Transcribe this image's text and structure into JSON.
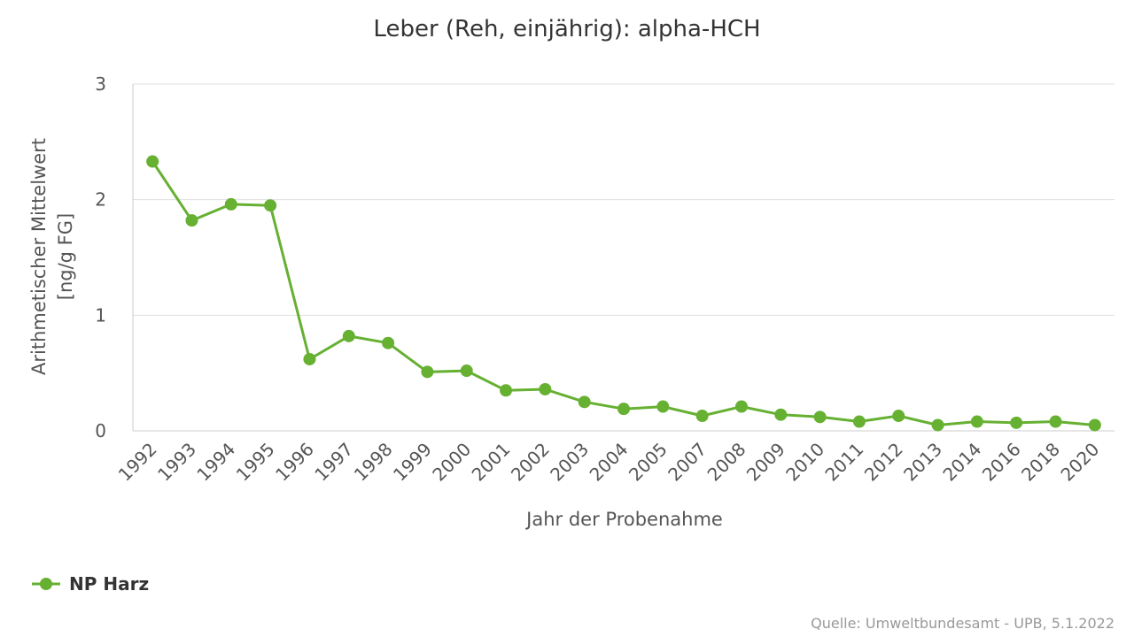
{
  "chart_data": {
    "type": "line",
    "title": "Leber (Reh, einjährig): alpha-HCH",
    "xlabel": "Jahr der Probenahme",
    "ylabel_line1": "Arithmetischer Mittelwert",
    "ylabel_line2": "[ng/g FG]",
    "ylim": [
      0,
      3
    ],
    "yticks": [
      "0",
      "1",
      "2",
      "3"
    ],
    "grid": true,
    "legend_position": "bottom-left",
    "categories": [
      "1992",
      "1993",
      "1994",
      "1995",
      "1996",
      "1997",
      "1998",
      "1999",
      "2000",
      "2001",
      "2002",
      "2003",
      "2004",
      "2005",
      "2007",
      "2008",
      "2009",
      "2010",
      "2011",
      "2012",
      "2013",
      "2014",
      "2016",
      "2018",
      "2020"
    ],
    "series": [
      {
        "name": "NP Harz",
        "color": "#66b032",
        "values": [
          2.33,
          1.82,
          1.96,
          1.95,
          0.62,
          0.82,
          0.76,
          0.51,
          0.52,
          0.35,
          0.36,
          0.25,
          0.19,
          0.21,
          0.13,
          0.21,
          0.14,
          0.12,
          0.08,
          0.13,
          0.05,
          0.08,
          0.07,
          0.08,
          0.05
        ]
      }
    ]
  },
  "credits": "Quelle: Umweltbundesamt - UPB, 5.1.2022"
}
